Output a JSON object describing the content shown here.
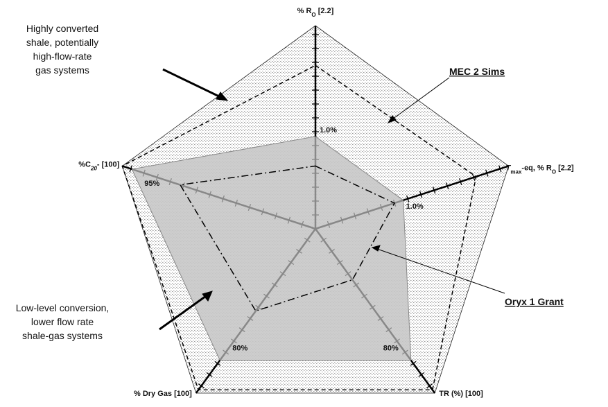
{
  "chart_data": {
    "type": "radar",
    "axes": [
      {
        "label": [
          "% R",
          "O",
          " [2.2]"
        ],
        "rlim": [
          0,
          2.2
        ]
      },
      {
        "label": [
          "T",
          "max",
          "-eq, % R",
          "O",
          " [2.2]"
        ],
        "rlim": [
          0,
          2.2
        ]
      },
      {
        "label": [
          "TR (%)  [100]"
        ],
        "rlim": [
          0,
          100
        ]
      },
      {
        "label": [
          "% Dry Gas [100]"
        ],
        "rlim": [
          0,
          100
        ]
      },
      {
        "label": [
          "%C",
          "20",
          "- [100]"
        ],
        "rlim": [
          0,
          100
        ]
      }
    ],
    "series": [
      {
        "values": [
          2.2,
          2.2,
          100,
          100,
          100
        ],
        "color": "#222222",
        "fill": "#d8d8d8",
        "dash": "none"
      },
      {
        "name": "MEC 2 Sims",
        "values": [
          1.77,
          1.83,
          98,
          98,
          100
        ],
        "color": "#000000",
        "dash": "6 4"
      },
      {
        "name": "Oryx 1 Grant",
        "values": [
          0.68,
          0.9,
          31,
          50,
          70
        ],
        "color": "#000000",
        "dash": "10 4 2 4"
      },
      {
        "values": [
          1.0,
          1.0,
          80,
          80,
          95
        ],
        "value_labels": [
          "1.0%",
          "1.0%",
          "80%",
          "80%",
          "95%"
        ],
        "color": "#888888",
        "fill": "#c8c8c8",
        "dash": "none"
      }
    ],
    "annotations": [
      [
        "Highly converted",
        "shale, potentially",
        "high-flow-rate",
        "gas systems"
      ],
      [
        "Low-level conversion,",
        "lower flow rate",
        "shale-gas systems"
      ]
    ]
  }
}
